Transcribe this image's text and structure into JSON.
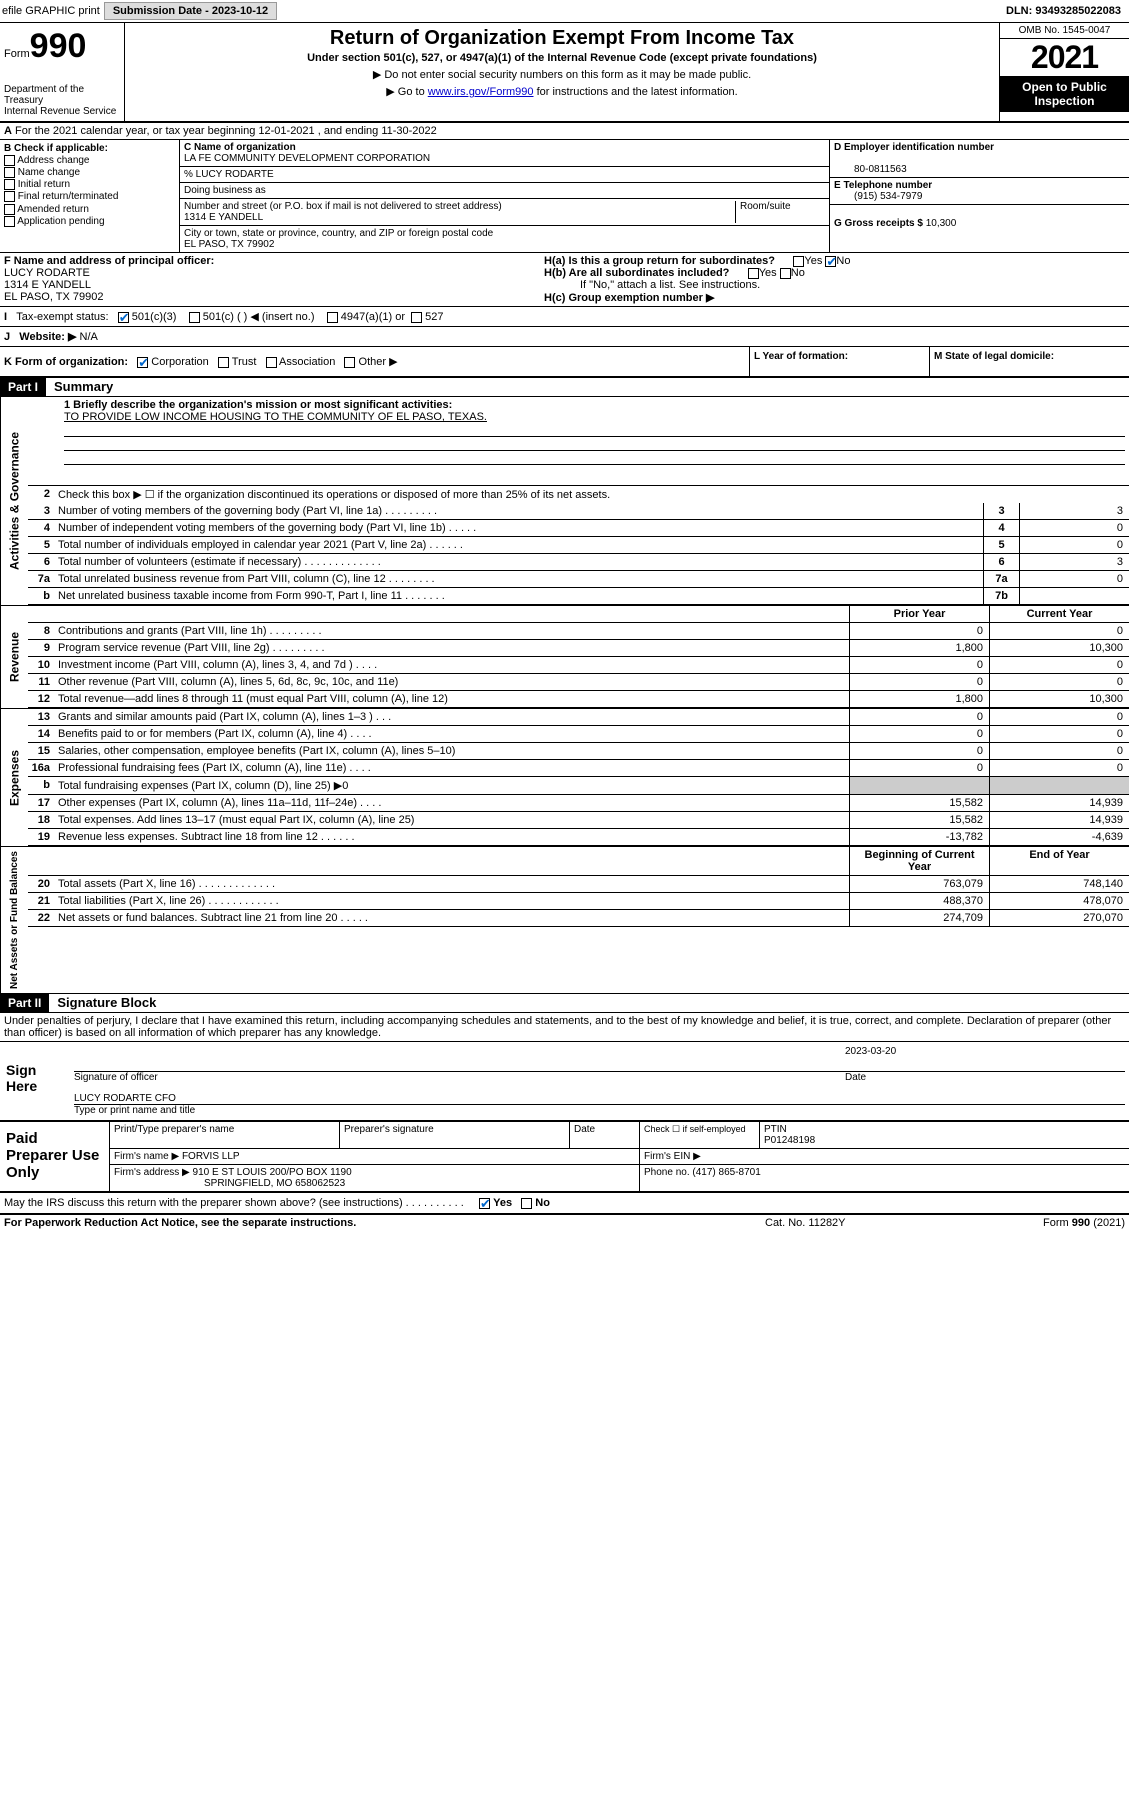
{
  "topbar": {
    "efile": "efile GRAPHIC print",
    "submission_label": "Submission Date - 2023-10-12",
    "dln": "DLN: 93493285022083"
  },
  "header": {
    "form_word": "Form",
    "form_num": "990",
    "dept": "Department of the Treasury\nInternal Revenue Service",
    "title": "Return of Organization Exempt From Income Tax",
    "sub": "Under section 501(c), 527, or 4947(a)(1) of the Internal Revenue Code (except private foundations)",
    "note1": "▶ Do not enter social security numbers on this form as it may be made public.",
    "note2_pre": "▶ Go to ",
    "note2_link": "www.irs.gov/Form990",
    "note2_post": " for instructions and the latest information.",
    "omb": "OMB No. 1545-0047",
    "year": "2021",
    "inspect": "Open to Public Inspection"
  },
  "A": {
    "text": "For the 2021 calendar year, or tax year beginning 12-01-2021    , and ending 11-30-2022"
  },
  "B": {
    "label": "B Check if applicable:",
    "opts": [
      "Address change",
      "Name change",
      "Initial return",
      "Final return/terminated",
      "Amended return",
      "Application pending"
    ]
  },
  "C": {
    "name_lbl": "C Name of organization",
    "name": "LA FE COMMUNITY DEVELOPMENT CORPORATION",
    "care": "% LUCY RODARTE",
    "dba_lbl": "Doing business as",
    "addr_lbl": "Number and street (or P.O. box if mail is not delivered to street address)",
    "room_lbl": "Room/suite",
    "addr": "1314 E YANDELL",
    "city_lbl": "City or town, state or province, country, and ZIP or foreign postal code",
    "city": "EL PASO, TX  79902"
  },
  "D": {
    "lbl": "D Employer identification number",
    "val": "80-0811563"
  },
  "E": {
    "lbl": "E Telephone number",
    "val": "(915) 534-7979"
  },
  "G": {
    "lbl": "G Gross receipts $",
    "val": "10,300"
  },
  "F": {
    "lbl": "F Name and address of principal officer:",
    "name": "LUCY RODARTE",
    "addr1": "1314 E YANDELL",
    "addr2": "EL PASO, TX  79902"
  },
  "H": {
    "a": "H(a)  Is this a group return for subordinates?",
    "a_yes": "Yes",
    "a_no": "No",
    "b": "H(b)  Are all subordinates included?",
    "b_yes": "Yes",
    "b_no": "No",
    "b_note": "If \"No,\" attach a list. See instructions.",
    "c": "H(c)  Group exemption number ▶"
  },
  "I": {
    "lbl": "Tax-exempt status:",
    "opt1": "501(c)(3)",
    "opt2": "501(c) (   ) ◀ (insert no.)",
    "opt3": "4947(a)(1) or",
    "opt4": "527"
  },
  "J": {
    "lbl": "Website: ▶",
    "val": "N/A"
  },
  "K": {
    "lbl": "K Form of organization:",
    "opts": [
      "Corporation",
      "Trust",
      "Association",
      "Other ▶"
    ]
  },
  "L": {
    "lbl": "L Year of formation:"
  },
  "M": {
    "lbl": "M State of legal domicile:"
  },
  "part1": {
    "hdr": "Part I",
    "title": "Summary"
  },
  "mission": {
    "q": "1  Briefly describe the organization's mission or most significant activities:",
    "txt": "TO PROVIDE LOW INCOME HOUSING TO THE COMMUNITY OF EL PASO, TEXAS."
  },
  "governance": {
    "label": "Activities & Governance",
    "l2": "Check this box ▶ ☐  if the organization discontinued its operations or disposed of more than 25% of its net assets.",
    "rows": [
      {
        "n": "3",
        "t": "Number of voting members of the governing body (Part VI, line 1a)   .    .    .    .    .    .    .    .    .",
        "b": "3",
        "v": "3"
      },
      {
        "n": "4",
        "t": "Number of independent voting members of the governing body (Part VI, line 1b)   .    .    .    .    .",
        "b": "4",
        "v": "0"
      },
      {
        "n": "5",
        "t": "Total number of individuals employed in calendar year 2021 (Part V, line 2a)   .    .    .    .    .    .",
        "b": "5",
        "v": "0"
      },
      {
        "n": "6",
        "t": "Total number of volunteers (estimate if necessary)   .    .    .    .    .    .    .    .    .    .    .    .    .",
        "b": "6",
        "v": "3"
      },
      {
        "n": "7a",
        "t": "Total unrelated business revenue from Part VIII, column (C), line 12   .    .    .    .    .    .    .    .",
        "b": "7a",
        "v": "0"
      },
      {
        "n": "b",
        "t": "Net unrelated business taxable income from Form 990-T, Part I, line 11   .    .    .    .    .    .    .",
        "b": "7b",
        "v": ""
      }
    ]
  },
  "revenue": {
    "label": "Revenue",
    "hdr_prior": "Prior Year",
    "hdr_curr": "Current Year",
    "rows": [
      {
        "n": "8",
        "t": "Contributions and grants (Part VIII, line 1h)   .    .    .    .    .    .    .    .    .",
        "p": "0",
        "c": "0"
      },
      {
        "n": "9",
        "t": "Program service revenue (Part VIII, line 2g)   .    .    .    .    .    .    .    .    .",
        "p": "1,800",
        "c": "10,300"
      },
      {
        "n": "10",
        "t": "Investment income (Part VIII, column (A), lines 3, 4, and 7d )   .    .    .    .",
        "p": "0",
        "c": "0"
      },
      {
        "n": "11",
        "t": "Other revenue (Part VIII, column (A), lines 5, 6d, 8c, 9c, 10c, and 11e)",
        "p": "0",
        "c": "0"
      },
      {
        "n": "12",
        "t": "Total revenue—add lines 8 through 11 (must equal Part VIII, column (A), line 12)",
        "p": "1,800",
        "c": "10,300"
      }
    ]
  },
  "expenses": {
    "label": "Expenses",
    "rows": [
      {
        "n": "13",
        "t": "Grants and similar amounts paid (Part IX, column (A), lines 1–3 )   .    .    .",
        "p": "0",
        "c": "0"
      },
      {
        "n": "14",
        "t": "Benefits paid to or for members (Part IX, column (A), line 4)   .    .    .    .",
        "p": "0",
        "c": "0"
      },
      {
        "n": "15",
        "t": "Salaries, other compensation, employee benefits (Part IX, column (A), lines 5–10)",
        "p": "0",
        "c": "0"
      },
      {
        "n": "16a",
        "t": "Professional fundraising fees (Part IX, column (A), line 11e)   .    .    .    .",
        "p": "0",
        "c": "0"
      },
      {
        "n": "b",
        "t": "Total fundraising expenses (Part IX, column (D), line 25) ▶0",
        "p": "",
        "c": "",
        "grey": true
      },
      {
        "n": "17",
        "t": "Other expenses (Part IX, column (A), lines 11a–11d, 11f–24e)   .    .    .    .",
        "p": "15,582",
        "c": "14,939"
      },
      {
        "n": "18",
        "t": "Total expenses. Add lines 13–17 (must equal Part IX, column (A), line 25)",
        "p": "15,582",
        "c": "14,939"
      },
      {
        "n": "19",
        "t": "Revenue less expenses. Subtract line 18 from line 12   .    .    .    .    .    .",
        "p": "-13,782",
        "c": "-4,639"
      }
    ]
  },
  "netassets": {
    "label": "Net Assets or Fund Balances",
    "hdr_beg": "Beginning of Current Year",
    "hdr_end": "End of Year",
    "rows": [
      {
        "n": "20",
        "t": "Total assets (Part X, line 16)   .    .    .    .    .    .    .    .    .    .    .    .    .",
        "p": "763,079",
        "c": "748,140"
      },
      {
        "n": "21",
        "t": "Total liabilities (Part X, line 26)   .    .    .    .    .    .    .    .    .    .    .    .",
        "p": "488,370",
        "c": "478,070"
      },
      {
        "n": "22",
        "t": "Net assets or fund balances. Subtract line 21 from line 20   .    .    .    .    .",
        "p": "274,709",
        "c": "270,070"
      }
    ]
  },
  "part2": {
    "hdr": "Part II",
    "title": "Signature Block"
  },
  "penalty": "Under penalties of perjury, I declare that I have examined this return, including accompanying schedules and statements, and to the best of my knowledge and belief, it is true, correct, and complete. Declaration of preparer (other than officer) is based on all information of which preparer has any knowledge.",
  "sign": {
    "here": "Sign Here",
    "sig_lbl": "Signature of officer",
    "date_lbl": "Date",
    "date": "2023-03-20",
    "name": "LUCY RODARTE  CFO",
    "name_lbl": "Type or print name and title"
  },
  "paid": {
    "here": "Paid Preparer Use Only",
    "h1": "Print/Type preparer's name",
    "h2": "Preparer's signature",
    "h3": "Date",
    "h4_lbl": "Check ☐ if self-employed",
    "h5_lbl": "PTIN",
    "h5": "P01248198",
    "firm_lbl": "Firm's name      ▶",
    "firm": "FORVIS LLP",
    "ein_lbl": "Firm's EIN ▶",
    "addr_lbl": "Firm's address ▶",
    "addr": "910 E ST LOUIS 200/PO BOX 1190",
    "addr2": "SPRINGFIELD, MO  658062523",
    "phone_lbl": "Phone no.",
    "phone": "(417) 865-8701"
  },
  "discuss": {
    "q": "May the IRS discuss this return with the preparer shown above? (see instructions)   .    .    .    .    .    .    .    .    .    .",
    "yes": "Yes",
    "no": "No"
  },
  "footer": {
    "pra": "For Paperwork Reduction Act Notice, see the separate instructions.",
    "cat": "Cat. No. 11282Y",
    "form": "Form 990 (2021)"
  }
}
